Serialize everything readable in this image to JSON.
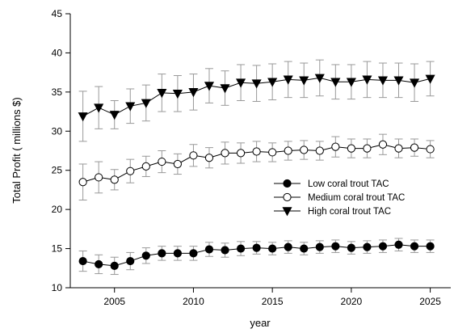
{
  "chart_data": {
    "type": "line",
    "xlabel": "year",
    "ylabel": "Total Profit ( millions $)",
    "xlim": [
      2002.2,
      2026.3
    ],
    "ylim": [
      10,
      45
    ],
    "xticks": [
      2005,
      2010,
      2015,
      2020,
      2025
    ],
    "yticks": [
      10,
      15,
      20,
      25,
      30,
      35,
      40,
      45
    ],
    "grid": false,
    "legend_position": "center-right",
    "x": [
      2003,
      2004,
      2005,
      2006,
      2007,
      2008,
      2009,
      2010,
      2011,
      2012,
      2013,
      2014,
      2015,
      2016,
      2017,
      2018,
      2019,
      2020,
      2021,
      2022,
      2023,
      2024,
      2025
    ],
    "series": [
      {
        "name": "Low coral trout TAC",
        "marker": "filled-circle",
        "values": [
          13.4,
          13.0,
          12.8,
          13.4,
          14.1,
          14.4,
          14.4,
          14.4,
          14.9,
          14.8,
          15.0,
          15.1,
          15.0,
          15.2,
          15.0,
          15.2,
          15.3,
          15.1,
          15.2,
          15.3,
          15.5,
          15.3,
          15.3
        ],
        "error": [
          1.3,
          1.2,
          1.1,
          1.1,
          1.0,
          0.9,
          0.9,
          0.9,
          0.9,
          0.9,
          0.9,
          0.8,
          0.8,
          0.8,
          0.8,
          0.8,
          0.8,
          0.8,
          0.8,
          0.8,
          0.8,
          0.8,
          0.8
        ]
      },
      {
        "name": "Medium coral trout TAC",
        "marker": "open-circle",
        "values": [
          23.5,
          24.1,
          23.8,
          24.9,
          25.5,
          26.1,
          25.8,
          26.9,
          26.6,
          27.2,
          27.2,
          27.4,
          27.3,
          27.5,
          27.6,
          27.5,
          28.0,
          27.8,
          27.8,
          28.3,
          27.8,
          27.9,
          27.7
        ],
        "error": [
          2.3,
          2.0,
          1.3,
          1.5,
          1.3,
          1.4,
          1.3,
          1.4,
          1.3,
          1.4,
          1.3,
          1.3,
          1.2,
          1.2,
          1.2,
          1.2,
          1.3,
          1.2,
          1.2,
          1.3,
          1.2,
          1.1,
          1.1
        ]
      },
      {
        "name": "High coral trout TAC",
        "marker": "filled-triangle-down",
        "values": [
          31.9,
          33.0,
          32.1,
          33.2,
          33.6,
          34.9,
          34.8,
          35.0,
          35.8,
          35.5,
          36.2,
          36.1,
          36.3,
          36.6,
          36.5,
          36.8,
          36.3,
          36.3,
          36.6,
          36.5,
          36.5,
          36.2,
          36.7
        ],
        "error": [
          3.2,
          2.7,
          1.8,
          2.2,
          2.3,
          2.4,
          2.3,
          2.3,
          2.2,
          2.2,
          2.3,
          2.3,
          2.3,
          2.3,
          2.2,
          2.3,
          2.2,
          2.2,
          2.3,
          2.2,
          2.2,
          2.4,
          2.2
        ]
      }
    ]
  }
}
